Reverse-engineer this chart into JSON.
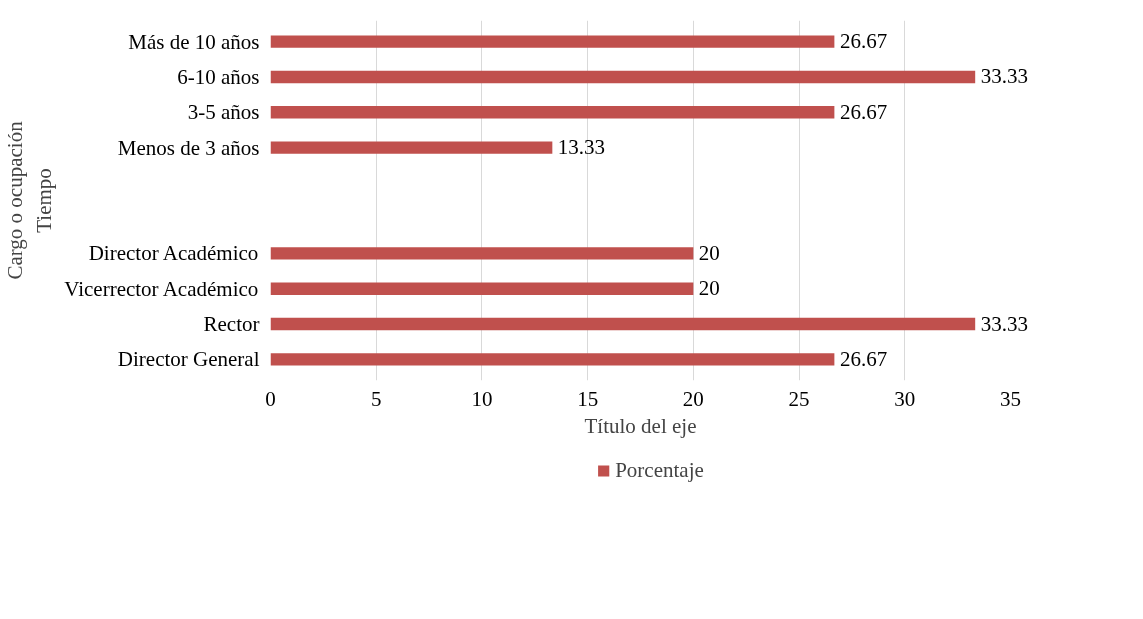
{
  "chart_data": {
    "type": "bar",
    "orientation": "horizontal",
    "xlabel": "Título del eje",
    "ylabel": "Cargo o ocupación\nTiempo",
    "categories": [
      "Más de 10 años",
      "6-10 años",
      "3-5 años",
      "Menos de 3 años",
      null,
      null,
      "Director Académico",
      "Vicerrector Académico",
      "Rector",
      "Director General"
    ],
    "series": [
      {
        "name": "Porcentaje",
        "color": "#c0504d",
        "values": [
          26.67,
          33.33,
          26.67,
          13.33,
          null,
          null,
          20,
          20,
          33.33,
          26.67
        ]
      }
    ],
    "xlim": [
      0,
      35
    ],
    "xticks": [
      0,
      5,
      10,
      15,
      20,
      25,
      30,
      35
    ],
    "grid": "x",
    "legend": "bottom",
    "data_labels": true
  }
}
